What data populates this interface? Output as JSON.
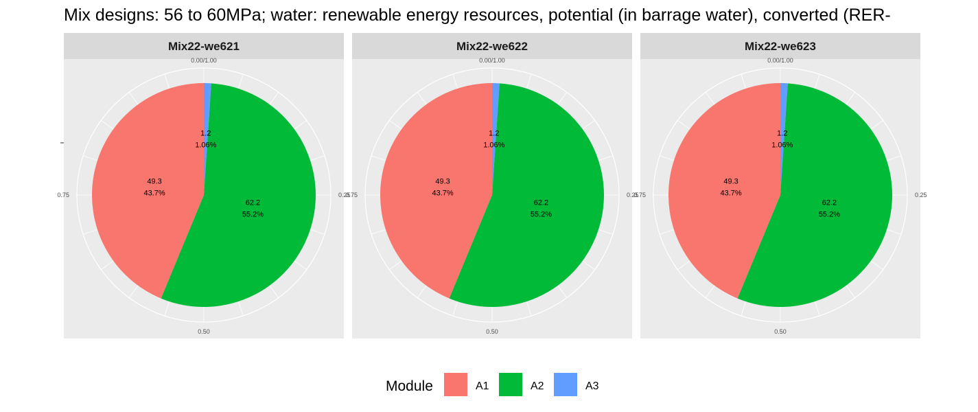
{
  "chart_data": {
    "type": "pie",
    "title": "Mix designs: 56 to 60MPa; water: renewable energy resources, potential (in barrage water), converted (RER-",
    "legend": {
      "title": "Module",
      "position": "bottom",
      "entries": [
        "A1",
        "A2",
        "A3"
      ]
    },
    "colors": {
      "A1": "#F8766D",
      "A2": "#00BA38",
      "A3": "#619CFF",
      "panel_bg": "#EBEBEB",
      "strip_bg": "#D9D9D9",
      "grid": "#FFFFFF"
    },
    "axis_ticks": [
      "0.00/1.00",
      "0.25",
      "0.50",
      "0.75"
    ],
    "facets": [
      {
        "name": "Mix22-we621",
        "slices": [
          {
            "module": "A1",
            "value": 49.3,
            "percent": "43.7%",
            "value_label": "49.3"
          },
          {
            "module": "A2",
            "value": 62.2,
            "percent": "55.2%",
            "value_label": "62.2"
          },
          {
            "module": "A3",
            "value": 1.2,
            "percent": "1.06%",
            "value_label": "1.2"
          }
        ]
      },
      {
        "name": "Mix22-we622",
        "slices": [
          {
            "module": "A1",
            "value": 49.3,
            "percent": "43.7%",
            "value_label": "49.3"
          },
          {
            "module": "A2",
            "value": 62.2,
            "percent": "55.2%",
            "value_label": "62.2"
          },
          {
            "module": "A3",
            "value": 1.2,
            "percent": "1.06%",
            "value_label": "1.2"
          }
        ]
      },
      {
        "name": "Mix22-we623",
        "slices": [
          {
            "module": "A1",
            "value": 49.3,
            "percent": "43.7%",
            "value_label": "49.3"
          },
          {
            "module": "A2",
            "value": 62.2,
            "percent": "55.2%",
            "value_label": "62.2"
          },
          {
            "module": "A3",
            "value": 1.2,
            "percent": "1.06%",
            "value_label": "1.2"
          }
        ]
      }
    ]
  }
}
